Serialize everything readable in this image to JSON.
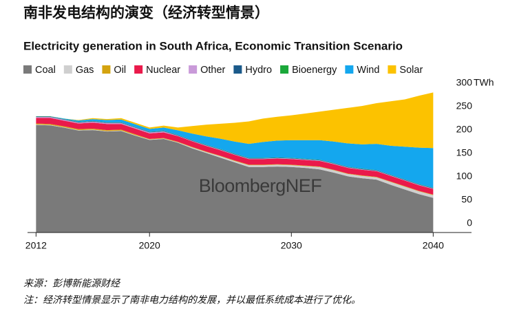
{
  "title": "南非发电结构的演变（经济转型情景）",
  "chart_data": {
    "type": "stacked_area",
    "title": "Electricity generation in South Africa, Economic Transition Scenario",
    "watermark": "BloombergNEF",
    "y_unit": "TWh",
    "x": [
      2012,
      2013,
      2014,
      2015,
      2016,
      2017,
      2018,
      2019,
      2020,
      2021,
      2022,
      2023,
      2024,
      2025,
      2026,
      2027,
      2028,
      2029,
      2030,
      2031,
      2032,
      2033,
      2034,
      2035,
      2036,
      2037,
      2038,
      2039,
      2040
    ],
    "xlim": [
      2011.4,
      2042.7
    ],
    "xticks": [
      2012,
      2020,
      2030,
      2040
    ],
    "ylim": [
      0,
      300
    ],
    "yticks": [
      0,
      50,
      100,
      150,
      200,
      250,
      300
    ],
    "series": [
      {
        "name": "Coal",
        "color": "#7a7a7a",
        "values": [
          230,
          229,
          224,
          218,
          219,
          216,
          217,
          207,
          198,
          200,
          192,
          180,
          170,
          160,
          150,
          140,
          140,
          141,
          140,
          138,
          135,
          128,
          120,
          116,
          113,
          102,
          92,
          82,
          74
        ]
      },
      {
        "name": "Gas",
        "color": "#cfcfcf",
        "values": [
          1,
          1,
          1,
          1,
          1,
          1,
          1,
          1,
          1,
          1,
          1,
          2,
          2,
          3,
          3,
          4,
          4,
          4,
          4,
          4,
          5,
          5,
          5,
          5,
          5,
          6,
          6,
          6,
          6
        ]
      },
      {
        "name": "Oil",
        "color": "#d4a30f",
        "values": [
          2,
          2,
          2,
          2,
          2,
          2,
          2,
          2,
          1,
          1,
          1,
          1,
          1,
          1,
          1,
          1,
          1,
          1,
          1,
          1,
          1,
          1,
          1,
          1,
          1,
          1,
          1,
          1,
          1
        ]
      },
      {
        "name": "Nuclear",
        "color": "#ea1a4b",
        "values": [
          12,
          13,
          12,
          12,
          13,
          13,
          12,
          12,
          12,
          12,
          12,
          12,
          12,
          12,
          12,
          12,
          12,
          12,
          12,
          12,
          12,
          12,
          12,
          12,
          12,
          12,
          12,
          12,
          12
        ]
      },
      {
        "name": "Other",
        "color": "#c99ad9",
        "values": [
          2,
          2,
          2,
          2,
          2,
          2,
          2,
          2,
          2,
          2,
          1,
          1,
          1,
          1,
          1,
          1,
          1,
          1,
          1,
          1,
          1,
          1,
          1,
          1,
          1,
          1,
          1,
          1,
          1
        ]
      },
      {
        "name": "Hydro",
        "color": "#1b5a8a",
        "values": [
          1,
          1,
          1,
          1,
          1,
          1,
          1,
          1,
          1,
          1,
          1,
          1,
          1,
          1,
          1,
          1,
          1,
          1,
          1,
          1,
          1,
          1,
          1,
          1,
          1,
          1,
          1,
          1,
          1
        ]
      },
      {
        "name": "Bioenergy",
        "color": "#1aa83a",
        "values": [
          0.5,
          0.5,
          0.5,
          0.5,
          0.5,
          0.5,
          0.5,
          0.5,
          0.5,
          0.5,
          0.5,
          0.5,
          0.5,
          0.5,
          0.5,
          0.5,
          0.5,
          0.5,
          0.5,
          0.5,
          0.5,
          0.5,
          0.5,
          0.5,
          0.5,
          0.5,
          0.5,
          0.5,
          0.5
        ]
      },
      {
        "name": "Wind",
        "color": "#14a7ee",
        "values": [
          0,
          0,
          1,
          3,
          4,
          5,
          6,
          6,
          6,
          7,
          10,
          14,
          18,
          22,
          26,
          30,
          34,
          36,
          38,
          40,
          42,
          46,
          50,
          52,
          56,
          62,
          70,
          78,
          85
        ]
      },
      {
        "name": "Solar",
        "color": "#fcc200",
        "values": [
          0,
          0,
          0,
          1,
          2,
          2,
          3,
          3,
          3,
          4,
          6,
          16,
          25,
          32,
          40,
          48,
          50,
          51,
          53,
          57,
          61,
          68,
          76,
          82,
          87,
          95,
          101,
          111,
          119
        ]
      }
    ]
  },
  "source": "来源：彭博新能源财经",
  "note": "注：经济转型情景显示了南非电力结构的发展，并以最低系统成本进行了优化。"
}
